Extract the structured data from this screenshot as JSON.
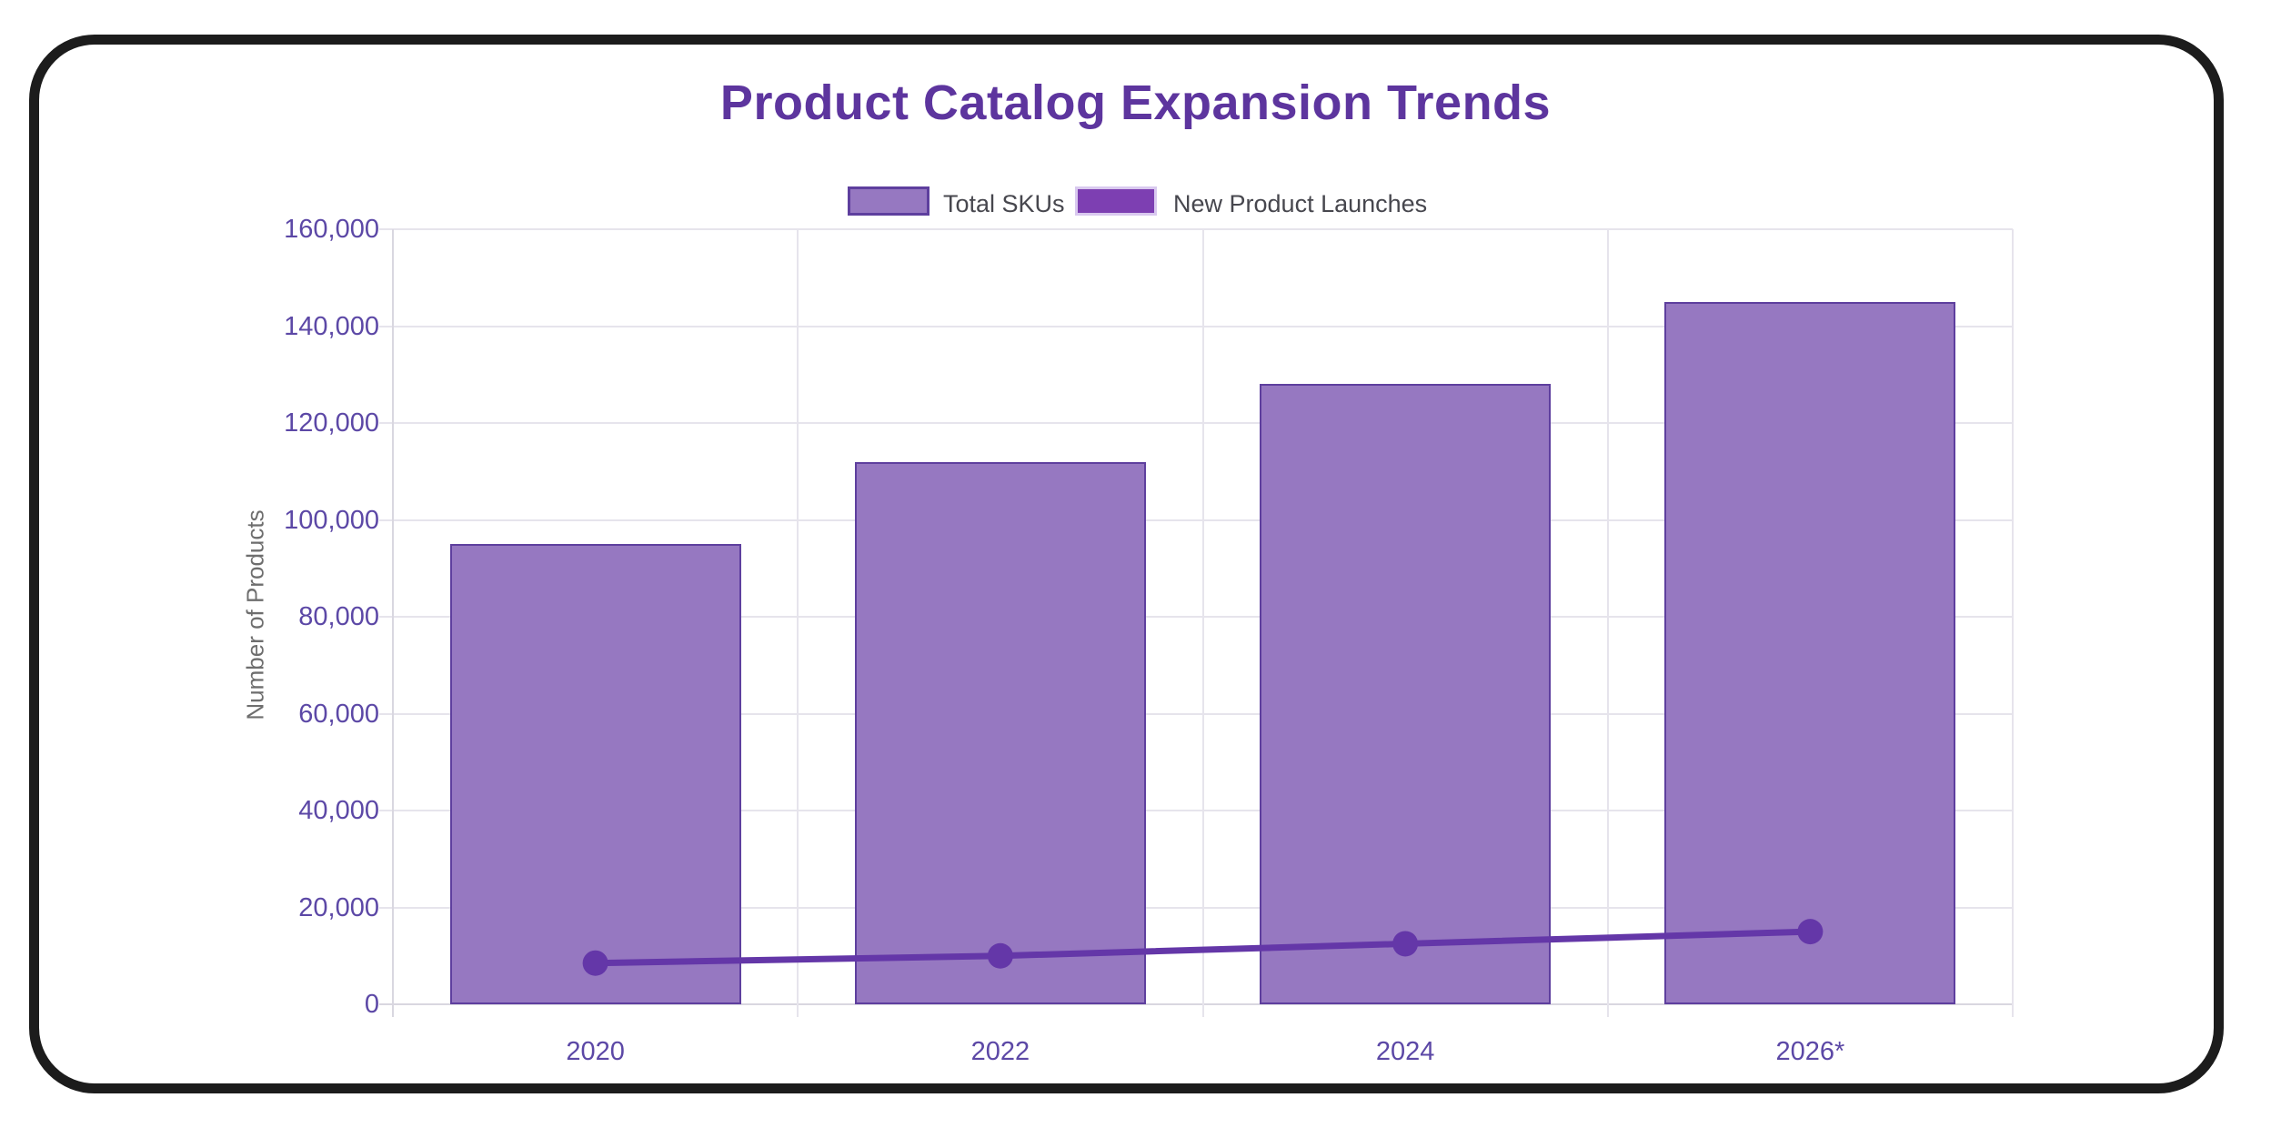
{
  "window": {
    "background": "#ffffff",
    "frame_color": "#1c1c1c"
  },
  "legend": {
    "position": "top",
    "items": [
      {
        "label": "Total SKUs",
        "swatch_fill": "#9678c1",
        "swatch_border": "#5e3f9e"
      },
      {
        "label": "New Product Launches",
        "swatch_fill": "#7d3fb2",
        "swatch_border": "#d9c9ef"
      }
    ]
  },
  "chart_data": {
    "type": "bar",
    "title": "Product Catalog Expansion Trends",
    "title_color": "#5d359e",
    "categories": [
      "2020",
      "2022",
      "2024",
      "2026*"
    ],
    "series": [
      {
        "name": "Total SKUs",
        "type": "bar",
        "values": [
          95000,
          112000,
          128000,
          145000
        ],
        "fill": "#9678c1",
        "border": "#5e3f9e"
      },
      {
        "name": "New Product Launches",
        "type": "line",
        "values": [
          8500,
          10000,
          12500,
          15000
        ],
        "color": "#6437a8"
      }
    ],
    "xlabel": "",
    "ylabel": "Number of Products",
    "ylim": [
      0,
      160000
    ],
    "ytick_step": 20000,
    "ytick_labels": [
      "0",
      "20,000",
      "40,000",
      "60,000",
      "80,000",
      "100,000",
      "120,000",
      "140,000",
      "160,000"
    ],
    "grid": true,
    "legend_position": "top",
    "tick_label_color": "#5c48a6",
    "axis_title_color": "#6e6e6e",
    "grid_color": "#e6e4ec"
  }
}
